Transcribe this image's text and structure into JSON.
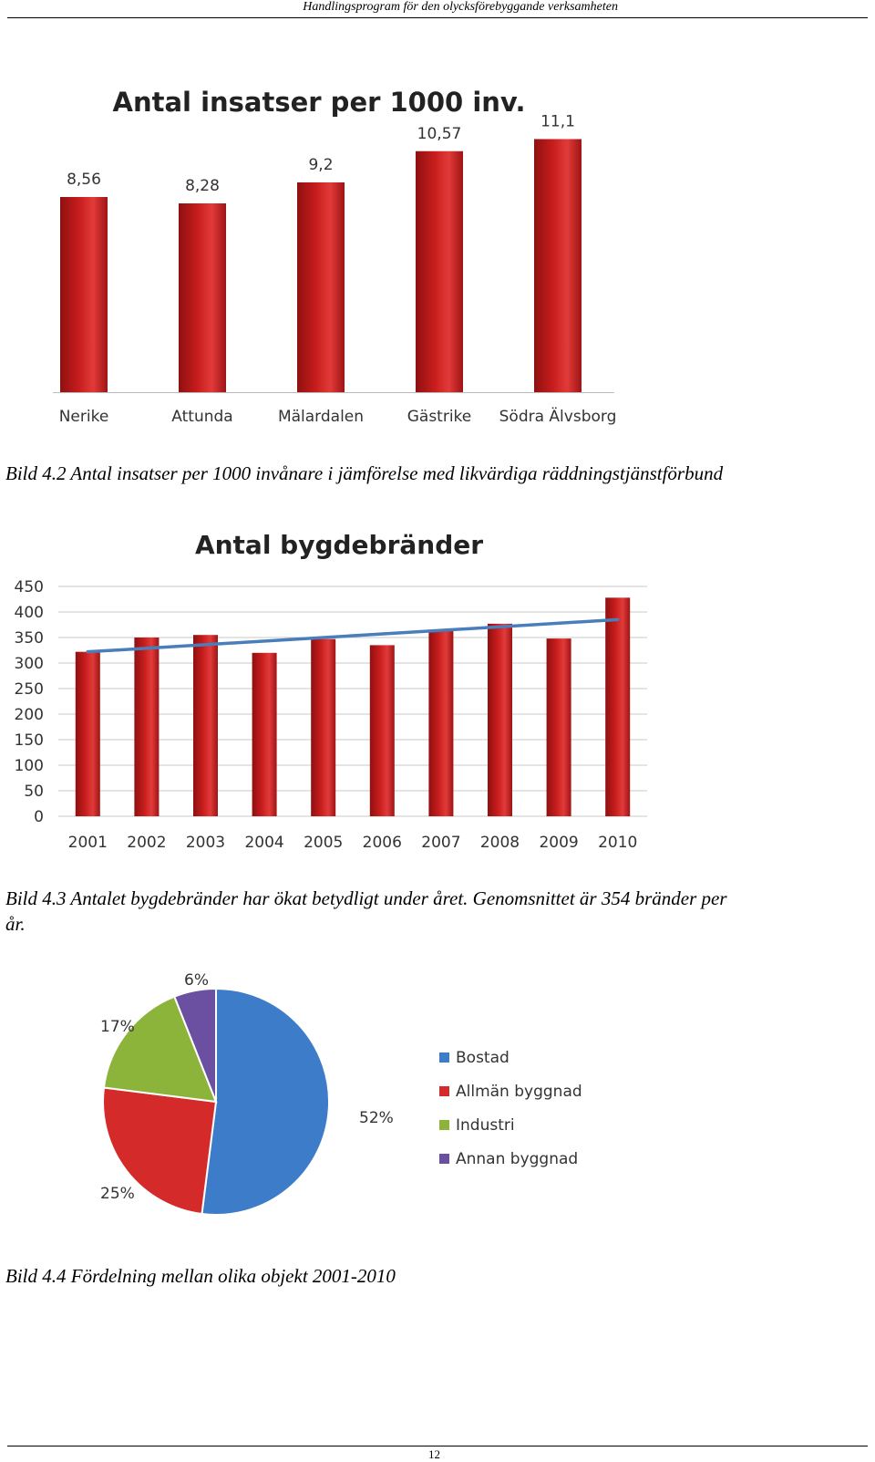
{
  "header": {
    "title": "Handlingsprogram för den olycksförebyggande verksamheten"
  },
  "captions": {
    "fig2": "Bild 4.2 Antal insatser per 1000 invånare i jämförelse med likvärdiga räddningstjänstförbund",
    "fig3_line1": "Bild 4.3 Antalet bygdebränder har ökat betydligt under året. Genomsnittet är 354 bränder per",
    "fig3_line2": "år.",
    "fig4": "Bild 4.4 Fördelning mellan olika objekt 2001-2010"
  },
  "footer": {
    "page_number": "12"
  },
  "chart_data": [
    {
      "type": "bar",
      "title": "Antal insatser per 1000 inv.",
      "categories": [
        "Nerike",
        "Attunda",
        "Mälardalen",
        "Gästrike",
        "Södra Älvsborg"
      ],
      "values": [
        8.56,
        8.28,
        9.2,
        10.57,
        11.1
      ],
      "data_labels": [
        "8,56",
        "8,28",
        "9,2",
        "10,57",
        "11,1"
      ],
      "color": "#c81d1d",
      "grid": false,
      "legend": "none"
    },
    {
      "type": "bar",
      "title": "Antal bygdebränder",
      "categories": [
        "2001",
        "2002",
        "2003",
        "2004",
        "2005",
        "2006",
        "2007",
        "2008",
        "2009",
        "2010"
      ],
      "values": [
        322,
        350,
        355,
        320,
        347,
        335,
        365,
        377,
        348,
        428
      ],
      "trendline": {
        "type": "linear",
        "start": 322,
        "end": 385,
        "color": "#4a7ebb"
      },
      "ylim": [
        0,
        450
      ],
      "yticks": [
        "0",
        "50",
        "100",
        "150",
        "200",
        "250",
        "300",
        "350",
        "400",
        "450"
      ],
      "color": "#c81d1d",
      "grid": true,
      "legend": "none"
    },
    {
      "type": "pie",
      "labels": [
        "Bostad",
        "Allmän byggnad",
        "Industri",
        "Annan byggnad"
      ],
      "values": [
        52,
        25,
        17,
        6
      ],
      "value_labels": [
        "52%",
        "25%",
        "17%",
        "6%"
      ],
      "colors": [
        "#3d7cc9",
        "#d42a2a",
        "#8db43a",
        "#6b4fa0"
      ],
      "legend": "right"
    }
  ]
}
